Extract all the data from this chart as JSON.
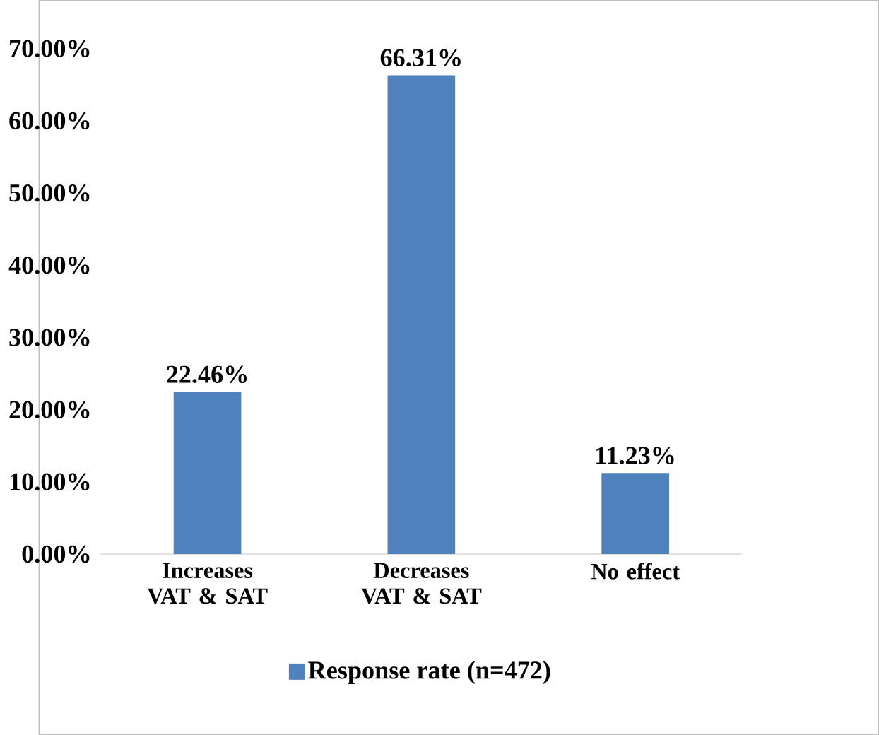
{
  "chart_data": {
    "type": "bar",
    "categories": [
      "Increases VAT & SAT",
      "Decreases VAT & SAT",
      "No effect"
    ],
    "series": [
      {
        "name": "Response rate (n=472)",
        "color": "#4f81bd",
        "values": [
          22.46,
          66.31,
          11.23
        ],
        "value_labels": [
          "22.46%",
          "66.31%",
          "11.23%"
        ]
      }
    ],
    "ylim": [
      0,
      70
    ],
    "yticks": [
      {
        "value": 0,
        "label": "0.00%"
      },
      {
        "value": 10,
        "label": "10.00%"
      },
      {
        "value": 20,
        "label": "20.00%"
      },
      {
        "value": 30,
        "label": "30.00%"
      },
      {
        "value": 40,
        "label": "40.00%"
      },
      {
        "value": 50,
        "label": "50.00%"
      },
      {
        "value": 60,
        "label": "60.00%"
      },
      {
        "value": 70,
        "label": "70.00%"
      }
    ],
    "grid": false,
    "legend": "bottom"
  }
}
